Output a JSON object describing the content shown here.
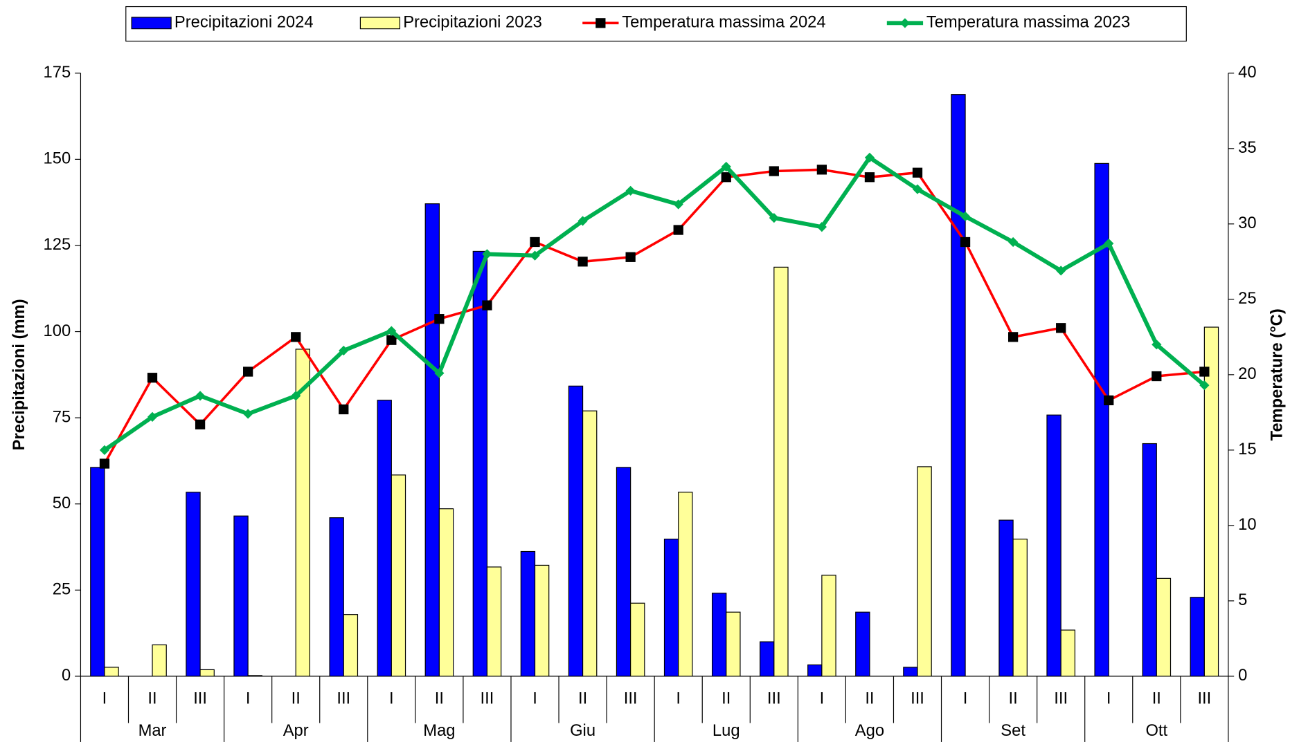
{
  "chart_data": {
    "type": "bar-line",
    "categories": [
      "I",
      "II",
      "III",
      "I",
      "II",
      "III",
      "I",
      "II",
      "III",
      "I",
      "II",
      "III",
      "I",
      "II",
      "III",
      "I",
      "II",
      "III",
      "I",
      "II",
      "III",
      "I",
      "II",
      "III"
    ],
    "months": [
      "Mar",
      "Apr",
      "Mag",
      "Giu",
      "Lug",
      "Ago",
      "Set",
      "Ott"
    ],
    "y_label": "Precipitazioni (mm)",
    "y2_label": "Temperature (°C)",
    "ylim": [
      0,
      175
    ],
    "yticks": [
      0,
      25,
      50,
      75,
      100,
      125,
      150,
      175
    ],
    "y2lim": [
      0,
      40
    ],
    "y2ticks": [
      0,
      5,
      10,
      15,
      20,
      25,
      30,
      35,
      40
    ],
    "legend": "top",
    "series": [
      {
        "name": "Precipitazioni 2024",
        "type": "bar",
        "color": "#0000ff",
        "values": [
          60.6,
          0,
          53.4,
          46.5,
          0,
          46,
          80.1,
          137.1,
          123.3,
          36.2,
          84.2,
          60.6,
          39.8,
          24.1,
          10,
          3.3,
          18.6,
          2.6,
          168.8,
          45.3,
          75.8,
          148.8,
          67.5,
          22.9
        ]
      },
      {
        "name": "Precipitazioni 2023",
        "type": "bar",
        "color": "#ffff99",
        "values": [
          2.6,
          9.1,
          1.9,
          0.2,
          94.9,
          17.9,
          58.4,
          48.6,
          31.7,
          32.2,
          77,
          21.2,
          53.4,
          18.6,
          118.7,
          29.3,
          0,
          60.8,
          0,
          39.8,
          13.4,
          0,
          28.4,
          101.3
        ]
      },
      {
        "name": "Temperatura massima 2024",
        "type": "line",
        "axis": "y2",
        "color": "#ff0000",
        "marker": "square",
        "values": [
          14.1,
          19.8,
          16.7,
          20.2,
          22.5,
          17.7,
          22.3,
          23.7,
          24.6,
          28.8,
          27.5,
          27.8,
          29.6,
          33.1,
          33.5,
          33.6,
          33.1,
          33.4,
          28.8,
          22.5,
          23.1,
          18.3,
          19.9,
          20.2
        ]
      },
      {
        "name": "Temperatura massima 2023",
        "type": "line",
        "axis": "y2",
        "color": "#00b050",
        "marker": "diamond",
        "values": [
          15,
          17.2,
          18.6,
          17.4,
          18.6,
          21.6,
          22.9,
          20.1,
          28,
          27.9,
          30.2,
          32.2,
          31.3,
          33.8,
          30.4,
          29.8,
          34.4,
          32.3,
          30.5,
          28.8,
          26.9,
          28.7,
          22,
          19.3
        ]
      }
    ]
  }
}
